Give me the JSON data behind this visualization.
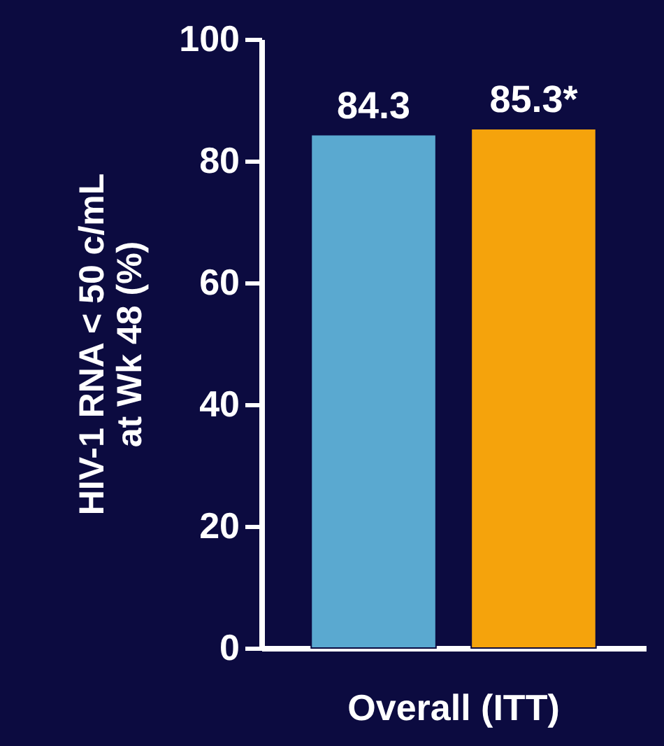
{
  "chart_data": {
    "type": "bar",
    "ylabel": "HIV-1 RNA < 50 c/mL\nat Wk 48 (%)",
    "categories": [
      "Overall (ITT)"
    ],
    "ylim": [
      0,
      100
    ],
    "yticks": [
      0,
      20,
      40,
      60,
      80,
      100
    ],
    "grid": false,
    "legend": false,
    "series": [
      {
        "color": "#5aa9d0",
        "values": [
          84.3
        ],
        "value_labels": [
          "84.3"
        ]
      },
      {
        "color": "#f5a30c",
        "values": [
          85.3
        ],
        "value_labels": [
          "85.3*"
        ]
      }
    ]
  }
}
